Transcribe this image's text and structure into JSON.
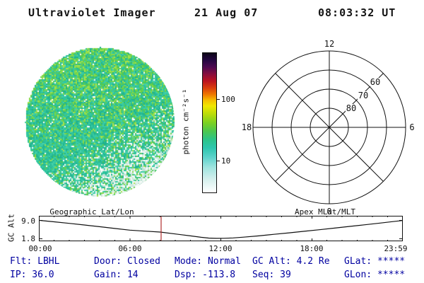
{
  "header": {
    "title": "Ultraviolet Imager",
    "date": "21 Aug 07",
    "time": "08:03:32 UT"
  },
  "colorbar": {
    "label": "photon cm⁻²s⁻¹",
    "ticks": [
      "100",
      "10"
    ]
  },
  "polar": {
    "hour_top": "12",
    "hour_left": "18",
    "hour_right": "6",
    "hour_bottom": "0",
    "rings": [
      "60",
      "70",
      "80"
    ]
  },
  "strip": {
    "title_left": "Geographic Lat/Lon",
    "title_right": "Apex MLat/MLT",
    "ylabel": "GC Alt",
    "yticks": [
      "9.0",
      "1.8"
    ],
    "xticks": [
      "00:00",
      "06:00",
      "12:00",
      "18:00",
      "23:59"
    ],
    "marker_hour": 8.06,
    "curve": [
      [
        0,
        8.9
      ],
      [
        1,
        8.3
      ],
      [
        2,
        7.7
      ],
      [
        3,
        7.05
      ],
      [
        4,
        6.4
      ],
      [
        5,
        5.7
      ],
      [
        6,
        5.05
      ],
      [
        7,
        4.65
      ],
      [
        8,
        4.3
      ],
      [
        9,
        3.55
      ],
      [
        10,
        2.8
      ],
      [
        10.7,
        2.25
      ],
      [
        11.2,
        1.95
      ],
      [
        11.7,
        1.82
      ],
      [
        12.2,
        1.85
      ],
      [
        12.8,
        2.0
      ],
      [
        13.5,
        2.3
      ],
      [
        14.5,
        2.8
      ],
      [
        15.5,
        3.4
      ],
      [
        16.5,
        4.0
      ],
      [
        17.5,
        4.6
      ],
      [
        18.5,
        5.2
      ],
      [
        19.5,
        5.85
      ],
      [
        20.5,
        6.5
      ],
      [
        21.5,
        7.15
      ],
      [
        22.5,
        7.8
      ],
      [
        23.3,
        8.35
      ],
      [
        23.98,
        8.8
      ]
    ]
  },
  "status": {
    "row1": [
      "Flt: LBHL",
      "Door: Closed",
      "Mode: Normal",
      "GC Alt: 4.2 Re",
      "GLat: *****"
    ],
    "row2": [
      "IP: 36.0",
      "Gain: 14",
      "Dsp: -113.8",
      "Seq: 39",
      "GLon: *****"
    ]
  },
  "colors": {
    "status_text": "#0000a0",
    "marker_red": "#b03030"
  },
  "uv_disk": {
    "colors": {
      "teal": [
        "#2ec29b",
        "#39cba4",
        "#27b893",
        "#43d0aa",
        "#2fc6a0",
        "#1fb38d"
      ],
      "green": [
        "#4ec855",
        "#68d14b",
        "#86da47",
        "#a5e24e",
        "#55cb62"
      ],
      "light": [
        "#d5ebe2",
        "#e6f3ee",
        "#c9e6da",
        "#f3f9f6",
        "#ffffff",
        "#bfe2d4"
      ]
    }
  }
}
